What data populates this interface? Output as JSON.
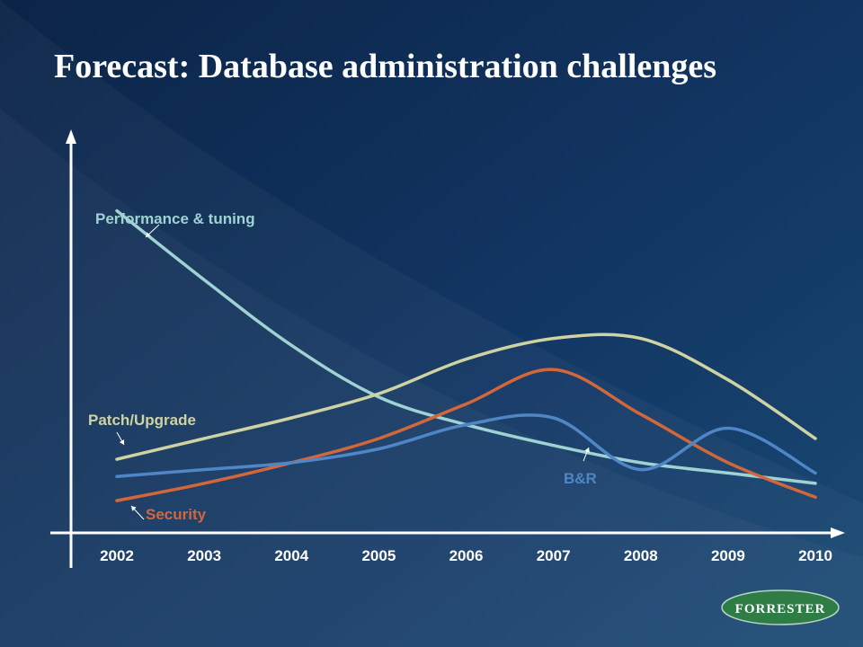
{
  "slide": {
    "title": "Forecast: Database administration challenges"
  },
  "logo": {
    "text": "FORRESTER",
    "color": "#2e7d45"
  },
  "chart_data": {
    "type": "line",
    "title": "",
    "xlabel": "",
    "ylabel": "",
    "x": [
      2002,
      2003,
      2004,
      2005,
      2006,
      2007,
      2008,
      2009,
      2010
    ],
    "ylim": [
      0,
      100
    ],
    "grid": false,
    "legend": "none",
    "series": [
      {
        "name": "Performance & tuning",
        "color": "#9fd2d2",
        "values": [
          91,
          71,
          52,
          37,
          29,
          23,
          18,
          15,
          12
        ]
      },
      {
        "name": "Patch/Upgrade",
        "color": "#cfd3a2",
        "values": [
          19,
          25,
          31,
          38,
          48,
          54,
          54,
          42,
          25
        ]
      },
      {
        "name": "Security",
        "color": "#d4673a",
        "values": [
          7,
          12,
          18,
          25,
          35,
          45,
          32,
          18,
          8
        ]
      },
      {
        "name": "B&R",
        "color": "#4f86c6",
        "values": [
          14,
          16,
          18,
          22,
          29,
          31,
          16,
          28,
          15
        ]
      }
    ]
  }
}
